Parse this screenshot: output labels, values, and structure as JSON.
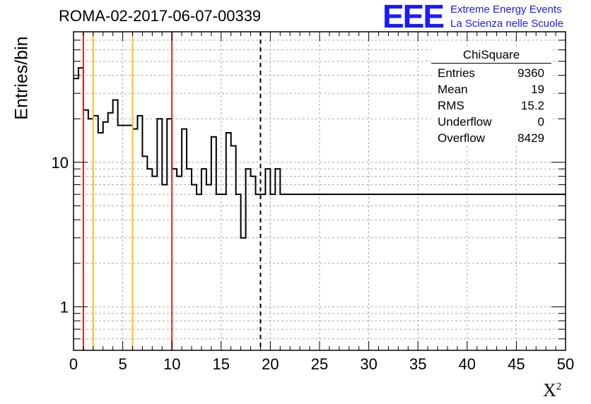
{
  "window": {
    "title": "ROMA-02-2017-06-07-00339"
  },
  "logo": {
    "text": "EEE",
    "line1": "Extreme Energy Events",
    "line2": "La Scienza nelle Scuole",
    "color": "#1a1aff"
  },
  "stats": {
    "title": "ChiSquare",
    "rows": [
      {
        "label": "Entries",
        "value": "9360"
      },
      {
        "label": "Mean",
        "value": "19"
      },
      {
        "label": "RMS",
        "value": "15.2"
      },
      {
        "label": "Underflow",
        "value": "0"
      },
      {
        "label": "Overflow",
        "value": "8429"
      }
    ]
  },
  "chart_data": {
    "type": "bar",
    "title": "ROMA-02-2017-06-07-00339",
    "xlabel": "X²",
    "ylabel": "Entries/bin",
    "xlim": [
      0,
      50
    ],
    "ylim": [
      0.5,
      80
    ],
    "yscale": "log",
    "grid": true,
    "bin_width": 0.5,
    "x_ticks": [
      "0",
      "5",
      "10",
      "15",
      "20",
      "25",
      "30",
      "35",
      "40",
      "45",
      "50"
    ],
    "y_ticks": [
      "1",
      "10"
    ],
    "values": [
      38,
      45,
      23,
      20,
      21,
      16,
      19,
      22,
      27,
      18,
      18,
      18,
      17,
      21,
      11,
      9,
      8,
      20,
      7,
      20,
      9,
      8,
      17,
      9,
      7,
      6,
      9,
      7,
      15,
      6,
      6,
      16,
      13,
      6,
      3,
      9,
      8,
      6,
      6,
      9,
      6,
      9,
      6,
      6,
      6,
      6,
      6,
      6,
      6,
      6,
      6,
      6,
      6,
      6,
      6,
      6,
      6,
      6,
      6,
      6,
      6,
      6,
      6,
      6,
      6,
      6,
      6,
      6,
      6,
      6,
      6,
      6,
      6,
      6,
      6,
      6,
      6,
      6,
      6,
      6,
      6,
      6,
      6,
      6,
      6,
      6,
      6,
      6,
      6,
      6,
      6,
      6,
      6,
      6,
      6,
      6,
      6,
      6,
      6,
      6
    ],
    "lines": [
      {
        "x": 1,
        "color": "#e32219",
        "style": "solid"
      },
      {
        "x": 2,
        "color": "#f5c218",
        "style": "solid"
      },
      {
        "x": 6,
        "color": "#f5c218",
        "style": "solid"
      },
      {
        "x": 10,
        "color": "#e32219",
        "style": "solid"
      },
      {
        "x": 19,
        "color": "#000000",
        "style": "dashed"
      }
    ]
  }
}
